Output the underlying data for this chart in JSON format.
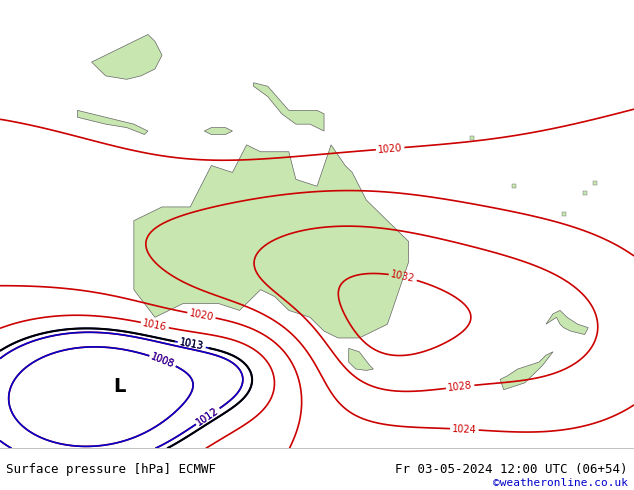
{
  "title_left": "Surface pressure [hPa] ECMWF",
  "title_right": "Fr 03-05-2024 12:00 UTC (06+54)",
  "copyright": "©weatheronline.co.uk",
  "bg_color": "#d0d8e8",
  "land_color": "#c8e6b0",
  "land_edge_color": "#888888",
  "contour_color_red": "#cc0000",
  "contour_color_blue": "#0000cc",
  "contour_color_black": "#000000",
  "text_color": "#000000",
  "copyright_color": "#0000cc",
  "footer_bg": "#ffffff",
  "pressure_levels": [
    1008,
    1012,
    1013,
    1016,
    1020,
    1024,
    1028,
    1032
  ],
  "figsize": [
    6.34,
    4.9
  ],
  "dpi": 100
}
